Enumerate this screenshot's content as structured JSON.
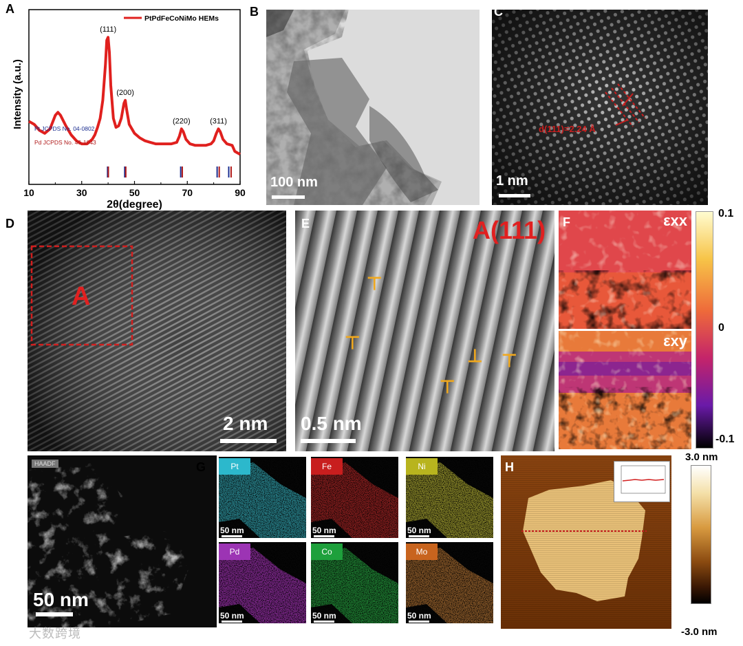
{
  "panels": {
    "A": "A",
    "B": "B",
    "C": "C",
    "D": "D",
    "E": "E",
    "F": "F",
    "G": "G",
    "H": "H"
  },
  "chart_data": {
    "type": "line",
    "legend": "PtPdFeCoNiMo HEMs",
    "legend_color": "#e0201e",
    "xlabel": "2θ(degree)",
    "ylabel": "Intensity (a.u.)",
    "xlim": [
      10,
      90
    ],
    "xticks": [
      "10",
      "30",
      "50",
      "70",
      "90"
    ],
    "series": [
      {
        "name": "PtPdFeCoNiMo HEMs",
        "x": [
          10,
          12,
          14,
          16,
          18,
          20,
          21,
          22,
          24,
          26,
          28,
          30,
          32,
          34,
          35,
          36,
          37,
          38,
          39,
          39.5,
          40,
          40.5,
          41,
          42,
          43,
          44,
          45,
          46,
          46.5,
          47,
          48,
          50,
          52,
          54,
          56,
          58,
          60,
          62,
          64,
          66,
          67,
          67.8,
          68.5,
          69.5,
          71,
          73,
          75,
          77,
          79,
          80,
          81,
          81.8,
          82.5,
          83.5,
          85,
          87,
          88,
          90
        ],
        "y": [
          42,
          40,
          36,
          34,
          37,
          46,
          48,
          46,
          39,
          33,
          29,
          27,
          27,
          30,
          33,
          38,
          44,
          56,
          80,
          96,
          98,
          88,
          66,
          44,
          38,
          39,
          44,
          54,
          56,
          50,
          40,
          34,
          31,
          29,
          28,
          27,
          27,
          27,
          27,
          28,
          32,
          37,
          35,
          30,
          27,
          26,
          26,
          26,
          27,
          29,
          34,
          37,
          35,
          30,
          27,
          26,
          22,
          20
        ]
      }
    ],
    "peaks": [
      {
        "label": "(111)",
        "x": 40,
        "y": 98
      },
      {
        "label": "(200)",
        "x": 46.5,
        "y": 56
      },
      {
        "label": "(220)",
        "x": 67.8,
        "y": 37
      },
      {
        "label": "(311)",
        "x": 81.8,
        "y": 37
      }
    ],
    "references": [
      {
        "name": "Pt JCPDS No. 04-0802",
        "color": "#1b2d8f",
        "positions": [
          39.8,
          46.3,
          67.5,
          81.3,
          85.7
        ]
      },
      {
        "name": "Pd JCPDS No. 46-1043",
        "color": "#b01a1a",
        "positions": [
          40.1,
          46.7,
          68.1,
          82.1,
          86.6
        ]
      }
    ],
    "ylim": [
      0,
      110
    ]
  },
  "scalebars": {
    "B": "100 nm",
    "C": "1 nm",
    "D": "2 nm",
    "E": "0.5 nm",
    "G_haadf": "50 nm",
    "G_map": "50 nm"
  },
  "panelC": {
    "d_label": "d(111)=2.24 Å"
  },
  "panelD": {
    "region": "A"
  },
  "panelE": {
    "title": "A(111)"
  },
  "panelF": {
    "exx": "εxx",
    "exy": "εxy",
    "colorbar": {
      "max": "0.1",
      "mid": "0",
      "min": "-0.1"
    }
  },
  "panelG": {
    "haadf": "HAADF",
    "elements": [
      {
        "name": "Pt",
        "color": "#28b4c8",
        "tag_color": "#2cb8cc",
        "dot": "#3fd6e6"
      },
      {
        "name": "Fe",
        "color": "#c81e1e",
        "tag_color": "#c81e1e",
        "dot": "#e03030"
      },
      {
        "name": "Ni",
        "color": "#b8b41e",
        "tag_color": "#b8b41e",
        "dot": "#e0dc40"
      },
      {
        "name": "Pd",
        "color": "#9c34b4",
        "tag_color": "#9c34b4",
        "dot": "#d040e8"
      },
      {
        "name": "Co",
        "color": "#1ea03c",
        "tag_color": "#1ea03c",
        "dot": "#30d050"
      },
      {
        "name": "Mo",
        "color": "#c8641e",
        "tag_color": "#c8641e",
        "dot": "#e09040"
      }
    ]
  },
  "panelH": {
    "colorbar": {
      "max": "3.0 nm",
      "min": "-3.0 nm"
    }
  },
  "watermark": "大数跨境"
}
